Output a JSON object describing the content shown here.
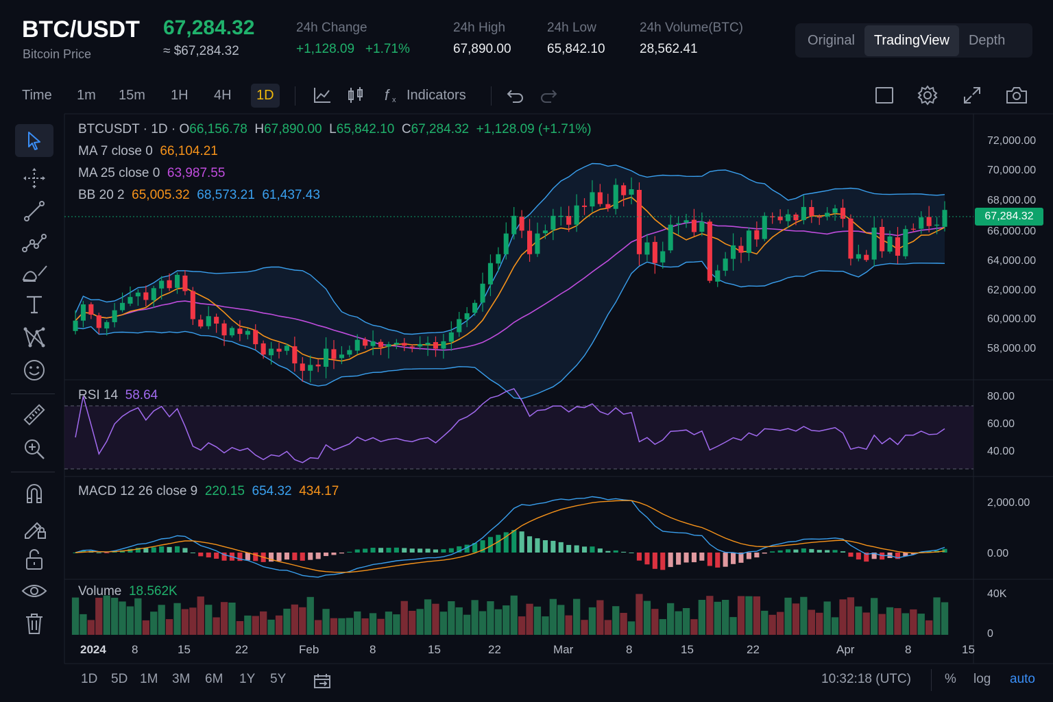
{
  "header": {
    "symbol": "BTC/USDT",
    "subtitle": "Bitcoin Price",
    "price": "67,284.32",
    "price_approx": "≈ $67,284.32",
    "stats": [
      {
        "label": "24h Change",
        "value": "+1,128.09",
        "value2": "+1.71%"
      },
      {
        "label": "24h High",
        "value": "67,890.00"
      },
      {
        "label": "24h Low",
        "value": "65,842.10"
      },
      {
        "label": "24h Volume(BTC)",
        "value": "28,562.41"
      }
    ],
    "view_tabs": [
      "Original",
      "TradingView",
      "Depth"
    ],
    "active_view": "TradingView"
  },
  "toolbar": {
    "intervals": [
      "Time",
      "1m",
      "15m",
      "1H",
      "4H",
      "1D"
    ],
    "active_interval": "1D",
    "indicators_label": "Indicators"
  },
  "legend": {
    "symbol": "BTCUSDT",
    "interval": "1D",
    "open_label": "O",
    "open": "66,156.78",
    "high_label": "H",
    "high": "67,890.00",
    "low_label": "L",
    "low": "65,842.10",
    "close_label": "C",
    "close": "67,284.32",
    "change": "+1,128.09 (+1.71%)",
    "ma7_label": "MA  7 close 0",
    "ma7": "66,104.21",
    "ma25_label": "MA  25 close 0",
    "ma25": "63,987.55",
    "bb_label": "BB  20  2",
    "bb_mid": "65,005.32",
    "bb_upper": "68,573.21",
    "bb_lower": "61,437.43",
    "rsi_label": "RSI 14",
    "rsi": "58.64",
    "macd_label": "MACD 12 26 close 9",
    "macd_hist": "220.15",
    "macd_line": "654.32",
    "macd_signal": "434.17",
    "volume_label": "Volume",
    "volume": "18.562K"
  },
  "price_axis": [
    "72,000.00",
    "70,000.00",
    "68,000.00",
    "66,000.00",
    "64,000.00",
    "62,000.00",
    "60,000.00",
    "58,000.00"
  ],
  "last_price_tag": "67,284.32",
  "rsi_axis": [
    "80.00",
    "60.00",
    "40.00"
  ],
  "macd_axis": [
    "2,000.00",
    "0.00"
  ],
  "volume_axis": [
    "40K",
    "0"
  ],
  "time_axis": [
    "2024",
    "8",
    "15",
    "22",
    "Feb",
    "8",
    "15",
    "22",
    "Mar",
    "8",
    "15",
    "22",
    "Apr",
    "8",
    "15"
  ],
  "bottombar": {
    "ranges": [
      "1D",
      "5D",
      "1M",
      "3M",
      "6M",
      "1Y",
      "5Y"
    ],
    "clock": "10:32:18 (UTC)",
    "percent_label": "%",
    "log_label": "log",
    "auto_label": "auto"
  },
  "colors": {
    "up": "#0ea36b",
    "down": "#f23645",
    "ma7": "#f7931a",
    "ma25": "#c04dde",
    "bb": "#3aa0ef",
    "rsi": "#a26bf0",
    "accent": "#f0b90b"
  },
  "chart_data": {
    "type": "candlestick",
    "title": "BTCUSDT · 1D",
    "ylim": [
      56000,
      73000
    ],
    "closes": [
      59800,
      60900,
      60200,
      59300,
      59700,
      60500,
      61000,
      61400,
      61700,
      61200,
      62000,
      62500,
      62000,
      62900,
      61800,
      59900,
      59400,
      60100,
      59600,
      58800,
      59300,
      58900,
      59100,
      58200,
      57500,
      57900,
      57700,
      58100,
      56900,
      56400,
      56800,
      56700,
      57900,
      57200,
      57500,
      57800,
      58500,
      58100,
      58400,
      58000,
      58200,
      58300,
      58100,
      58000,
      58200,
      58300,
      57900,
      58400,
      59000,
      59900,
      60300,
      61000,
      62300,
      63700,
      64300,
      65700,
      66900,
      65900,
      64300,
      65700,
      65900,
      66900,
      66900,
      66300,
      67600,
      67500,
      68500,
      67700,
      67400,
      69000,
      68300,
      68700,
      64300,
      65100,
      63700,
      64500,
      66300,
      66400,
      66600,
      65800,
      66500,
      62500,
      63200,
      64000,
      64900,
      64400,
      65900,
      65300,
      66900,
      66800,
      66600,
      67000,
      66600,
      67500,
      66900,
      66800,
      67100,
      67400,
      66700,
      64000,
      64300,
      63900,
      66100,
      64500,
      65500,
      64200,
      66000,
      66000,
      66800,
      66200,
      66300,
      67300
    ]
  }
}
